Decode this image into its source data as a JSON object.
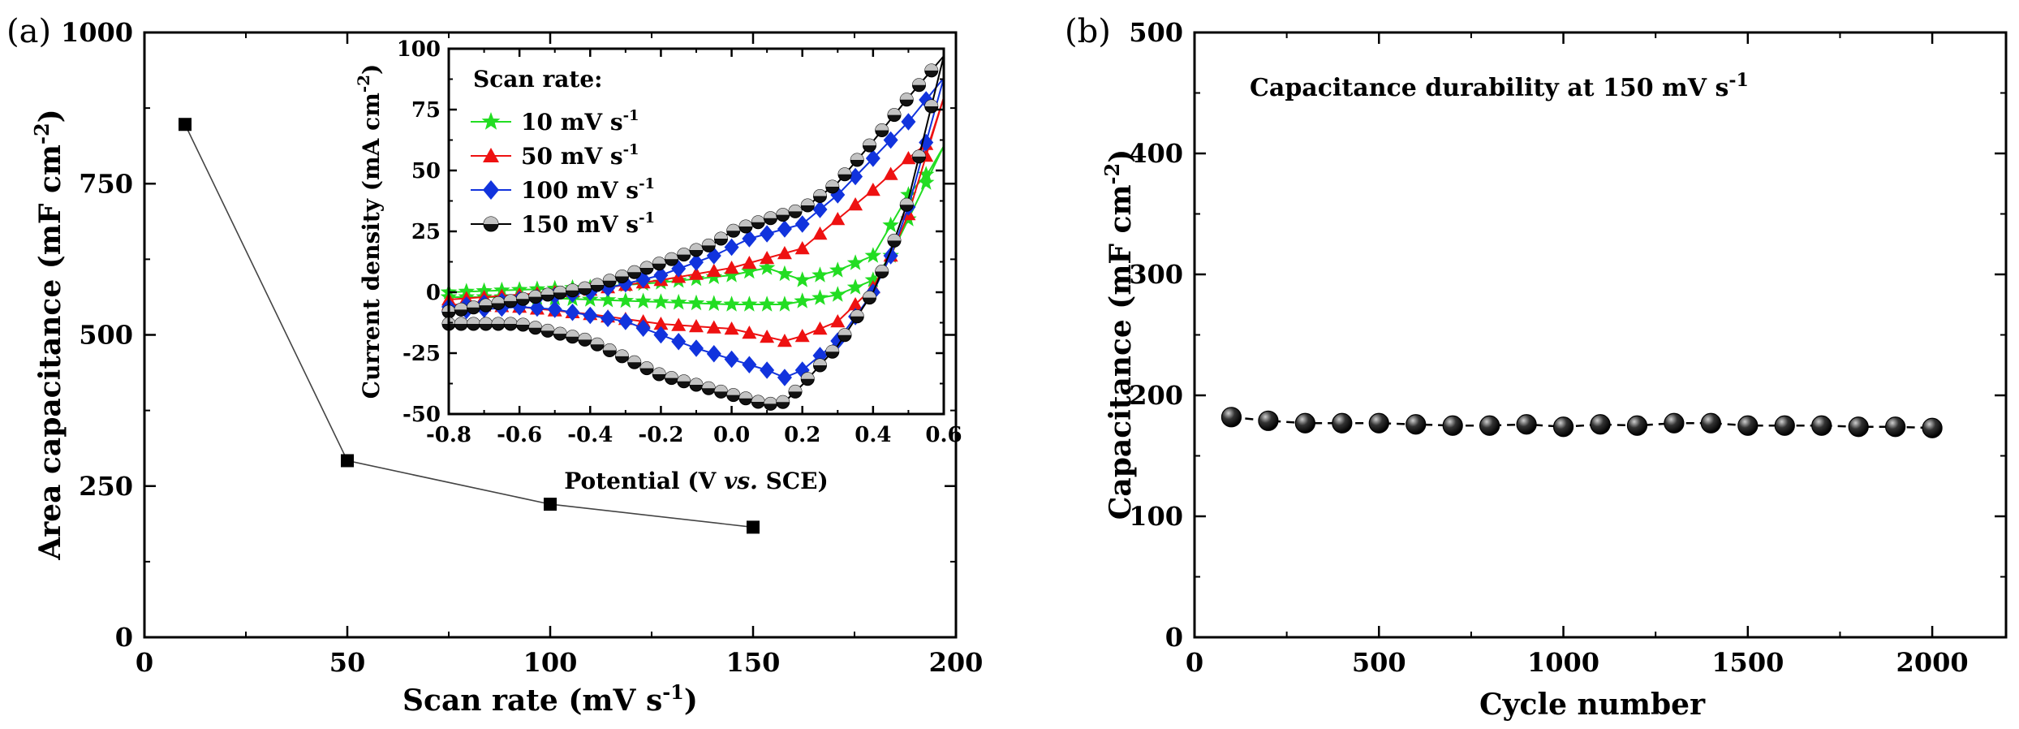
{
  "panel_tags": [
    "(a)",
    "(b)"
  ],
  "chart_data": [
    {
      "type": "line",
      "panel": "(a)",
      "xlabel": "Scan rate (mV s⁻¹)",
      "ylabel": "Area capacitance (mF cm⁻²)",
      "xlim": [
        0,
        200
      ],
      "ylim": [
        0,
        1000
      ],
      "xticks": [
        0,
        50,
        100,
        150,
        200
      ],
      "yticks": [
        0,
        250,
        500,
        750,
        1000
      ],
      "grid": false,
      "series": [
        {
          "x": [
            10,
            50,
            100,
            150
          ],
          "values": [
            848,
            292,
            220,
            182
          ],
          "color": "#000000"
        }
      ]
    },
    {
      "type": "line",
      "panel": "(a) inset",
      "xlabel": "Potential (V vs. SCE)",
      "ylabel": "Current density (mA cm⁻²)",
      "xlim": [
        -0.8,
        0.6
      ],
      "ylim": [
        -50,
        100
      ],
      "xticks": [
        -0.8,
        -0.6,
        -0.4,
        -0.2,
        0.0,
        0.2,
        0.4,
        0.6
      ],
      "yticks": [
        -50,
        -25,
        0,
        25,
        50,
        75,
        100
      ],
      "legend_title": "Scan rate:",
      "legend_position": "top-left",
      "series": [
        {
          "name": "10 mV s⁻¹",
          "color": "#22dd22",
          "marker": "star",
          "upper": [
            [
              -0.8,
              0
            ],
            [
              -0.6,
              1
            ],
            [
              -0.4,
              2
            ],
            [
              -0.2,
              4
            ],
            [
              0.0,
              7
            ],
            [
              0.1,
              10
            ],
            [
              0.2,
              5
            ],
            [
              0.3,
              9
            ],
            [
              0.4,
              15
            ],
            [
              0.5,
              40
            ],
            [
              0.56,
              50
            ],
            [
              0.6,
              60
            ]
          ],
          "lower": [
            [
              0.6,
              60
            ],
            [
              0.5,
              30
            ],
            [
              0.45,
              15
            ],
            [
              0.4,
              5
            ],
            [
              0.3,
              -1
            ],
            [
              0.15,
              -5
            ],
            [
              0.0,
              -5
            ],
            [
              -0.2,
              -4
            ],
            [
              -0.4,
              -3
            ],
            [
              -0.6,
              -2
            ],
            [
              -0.8,
              -2
            ]
          ]
        },
        {
          "name": "50 mV s⁻¹",
          "color": "#ee1111",
          "marker": "triangle",
          "upper": [
            [
              -0.8,
              -3
            ],
            [
              -0.6,
              -1
            ],
            [
              -0.4,
              1
            ],
            [
              -0.2,
              5
            ],
            [
              0.0,
              10
            ],
            [
              0.2,
              18
            ],
            [
              0.3,
              30
            ],
            [
              0.4,
              42
            ],
            [
              0.5,
              55
            ],
            [
              0.56,
              62
            ],
            [
              0.6,
              80
            ]
          ],
          "lower": [
            [
              0.6,
              80
            ],
            [
              0.5,
              32
            ],
            [
              0.45,
              15
            ],
            [
              0.4,
              2
            ],
            [
              0.3,
              -12
            ],
            [
              0.2,
              -18
            ],
            [
              0.15,
              -20
            ],
            [
              0.0,
              -15
            ],
            [
              -0.2,
              -13
            ],
            [
              -0.4,
              -9
            ],
            [
              -0.6,
              -6
            ],
            [
              -0.8,
              -5
            ]
          ]
        },
        {
          "name": "100 mV s⁻¹",
          "color": "#1133dd",
          "marker": "diamond",
          "upper": [
            [
              -0.8,
              -6
            ],
            [
              -0.6,
              -3
            ],
            [
              -0.4,
              0
            ],
            [
              -0.2,
              7
            ],
            [
              -0.05,
              15
            ],
            [
              0.05,
              22
            ],
            [
              0.2,
              28
            ],
            [
              0.3,
              40
            ],
            [
              0.4,
              55
            ],
            [
              0.5,
              70
            ],
            [
              0.6,
              88
            ]
          ],
          "lower": [
            [
              0.6,
              88
            ],
            [
              0.5,
              35
            ],
            [
              0.45,
              15
            ],
            [
              0.4,
              0
            ],
            [
              0.3,
              -20
            ],
            [
              0.2,
              -32
            ],
            [
              0.15,
              -35
            ],
            [
              0.1,
              -32
            ],
            [
              -0.1,
              -23
            ],
            [
              -0.3,
              -12
            ],
            [
              -0.5,
              -7
            ],
            [
              -0.6,
              -6
            ],
            [
              -0.8,
              -8
            ]
          ]
        },
        {
          "name": "150 mV s⁻¹",
          "color": "#000000",
          "marker": "circle",
          "upper": [
            [
              -0.8,
              -8
            ],
            [
              -0.6,
              -3
            ],
            [
              -0.4,
              2
            ],
            [
              -0.2,
              12
            ],
            [
              -0.05,
              20
            ],
            [
              0.0,
              25
            ],
            [
              0.1,
              30
            ],
            [
              0.2,
              34
            ],
            [
              0.3,
              45
            ],
            [
              0.4,
              62
            ],
            [
              0.5,
              80
            ],
            [
              0.6,
              97
            ]
          ],
          "lower": [
            [
              0.6,
              97
            ],
            [
              0.5,
              38
            ],
            [
              0.45,
              17
            ],
            [
              0.4,
              0
            ],
            [
              0.3,
              -22
            ],
            [
              0.2,
              -38
            ],
            [
              0.15,
              -45
            ],
            [
              0.1,
              -46
            ],
            [
              0.0,
              -42
            ],
            [
              -0.2,
              -34
            ],
            [
              -0.4,
              -20
            ],
            [
              -0.6,
              -13
            ],
            [
              -0.8,
              -13
            ]
          ]
        }
      ]
    },
    {
      "type": "line",
      "panel": "(b)",
      "xlabel": "Cycle number",
      "ylabel": "Capacitance (mF cm⁻²)",
      "xlim": [
        0,
        2200
      ],
      "ylim": [
        0,
        500
      ],
      "xticks": [
        0,
        500,
        1000,
        1500,
        2000
      ],
      "yticks": [
        0,
        100,
        200,
        300,
        400,
        500
      ],
      "grid": false,
      "annotation": "Capacitance durability at 150 mV s⁻¹",
      "series": [
        {
          "x": [
            100,
            200,
            300,
            400,
            500,
            600,
            700,
            800,
            900,
            1000,
            1100,
            1200,
            1300,
            1400,
            1500,
            1600,
            1700,
            1800,
            1900,
            2000
          ],
          "values": [
            182,
            179,
            177,
            177,
            177,
            176,
            175,
            175,
            176,
            174,
            176,
            175,
            177,
            177,
            175,
            175,
            175,
            174,
            174,
            173
          ],
          "color": "#000000",
          "marker": "sphere",
          "line_style": "dashed"
        }
      ]
    }
  ]
}
